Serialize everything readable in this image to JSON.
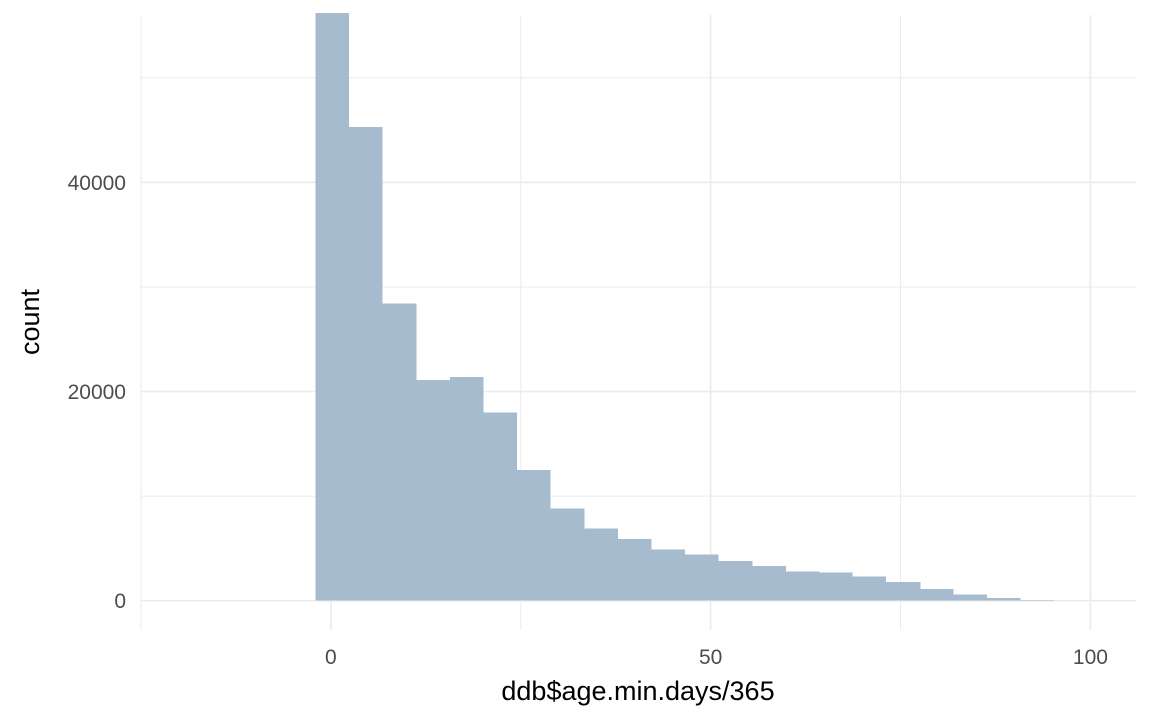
{
  "chart_data": {
    "type": "bar",
    "xlabel": "ddb$age.min.days/365",
    "ylabel": "count",
    "xlim": [
      -25,
      106
    ],
    "ylim": [
      -2800,
      56000
    ],
    "grid": true,
    "bar_color": "#a7bbcf",
    "grid_color": "#ebebeb",
    "x_ticks": [
      0,
      50,
      100
    ],
    "x_tick_labels": [
      "0",
      "50",
      "100"
    ],
    "y_ticks": [
      0,
      20000,
      40000
    ],
    "y_tick_labels": [
      "0",
      "20000",
      "40000"
    ],
    "bins": [
      {
        "x0": -2.0,
        "x1": 2.4,
        "count": 56200
      },
      {
        "x0": 2.4,
        "x1": 6.8,
        "count": 45300
      },
      {
        "x0": 6.8,
        "x1": 11.3,
        "count": 28400
      },
      {
        "x0": 11.3,
        "x1": 15.7,
        "count": 21100
      },
      {
        "x0": 15.7,
        "x1": 20.1,
        "count": 21400
      },
      {
        "x0": 20.1,
        "x1": 24.5,
        "count": 18000
      },
      {
        "x0": 24.5,
        "x1": 28.9,
        "count": 12500
      },
      {
        "x0": 28.9,
        "x1": 33.4,
        "count": 8800
      },
      {
        "x0": 33.4,
        "x1": 37.8,
        "count": 6900
      },
      {
        "x0": 37.8,
        "x1": 42.2,
        "count": 5900
      },
      {
        "x0": 42.2,
        "x1": 46.6,
        "count": 4900
      },
      {
        "x0": 46.6,
        "x1": 51.0,
        "count": 4400
      },
      {
        "x0": 51.0,
        "x1": 55.5,
        "count": 3800
      },
      {
        "x0": 55.5,
        "x1": 59.9,
        "count": 3300
      },
      {
        "x0": 59.9,
        "x1": 64.3,
        "count": 2800
      },
      {
        "x0": 64.3,
        "x1": 68.7,
        "count": 2700
      },
      {
        "x0": 68.7,
        "x1": 73.1,
        "count": 2300
      },
      {
        "x0": 73.1,
        "x1": 77.6,
        "count": 1800
      },
      {
        "x0": 77.6,
        "x1": 82.0,
        "count": 1100
      },
      {
        "x0": 82.0,
        "x1": 86.4,
        "count": 600
      },
      {
        "x0": 86.4,
        "x1": 90.8,
        "count": 250
      },
      {
        "x0": 90.8,
        "x1": 95.2,
        "count": 80
      }
    ]
  }
}
